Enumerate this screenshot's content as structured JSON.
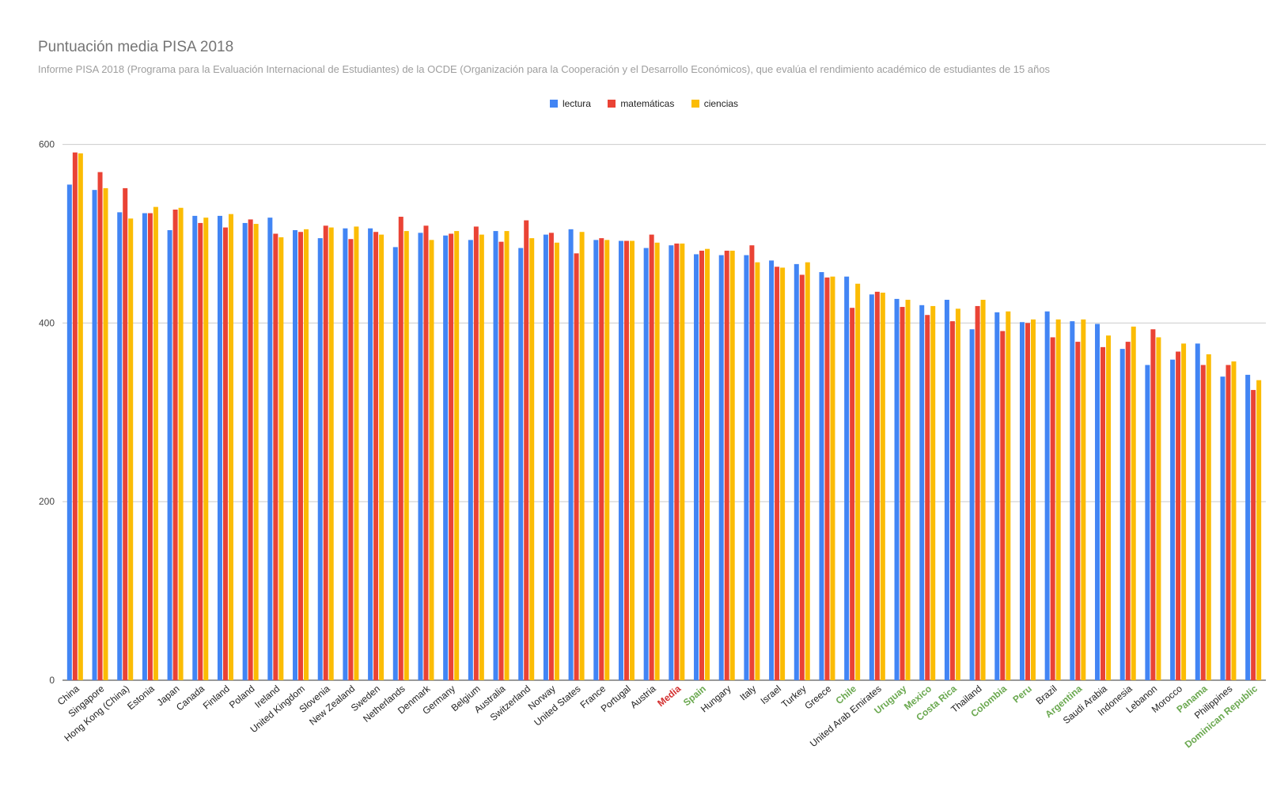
{
  "chart_data": {
    "type": "bar",
    "title": "Puntuación media PISA 2018",
    "subtitle": "Informe PISA 2018 (Programa para la Evaluación Internacional de Estudiantes) de la OCDE (Organización para la Cooperación y el Desarrollo Económicos), que evalúa el rendimiento académico de estudiantes de 15 años",
    "ylim": [
      0,
      620
    ],
    "yticks": [
      0,
      200,
      400,
      600
    ],
    "grid": true,
    "legend_position": "top",
    "categories": [
      "China",
      "Singapore",
      "Hong Kong (China)",
      "Estonia",
      "Japan",
      "Canada",
      "Finland",
      "Poland",
      "Ireland",
      "United Kingdom",
      "Slovenia",
      "New Zealand",
      "Sweden",
      "Netherlands",
      "Denmark",
      "Germany",
      "Belgium",
      "Australia",
      "Switzerland",
      "Norway",
      "United States",
      "France",
      "Portugal",
      "Austria",
      "Media",
      "Spain",
      "Hungary",
      "Italy",
      "Israel",
      "Turkey",
      "Greece",
      "Chile",
      "United Arab Emirates",
      "Uruguay",
      "Mexico",
      "Costa Rica",
      "Thailand",
      "Colombia",
      "Peru",
      "Brazil",
      "Argentina",
      "Saudi Arabia",
      "Indonesia",
      "Lebanon",
      "Morocco",
      "Panama",
      "Philippines",
      "Dominican Republic"
    ],
    "highlight_categories": {
      "Media": "#d32f2f",
      "Spain": "#6aa84f",
      "Chile": "#6aa84f",
      "Uruguay": "#6aa84f",
      "Mexico": "#6aa84f",
      "Costa Rica": "#6aa84f",
      "Colombia": "#6aa84f",
      "Peru": "#6aa84f",
      "Argentina": "#6aa84f",
      "Panama": "#6aa84f",
      "Dominican Republic": "#6aa84f"
    },
    "series": [
      {
        "name": "lectura",
        "color": "#4285f4",
        "values": [
          555,
          549,
          524,
          523,
          504,
          520,
          520,
          512,
          518,
          504,
          495,
          506,
          506,
          485,
          501,
          498,
          493,
          503,
          484,
          499,
          505,
          493,
          492,
          484,
          487,
          477,
          476,
          476,
          470,
          466,
          457,
          452,
          432,
          427,
          420,
          426,
          393,
          412,
          401,
          413,
          402,
          399,
          371,
          353,
          359,
          377,
          340,
          342
        ]
      },
      {
        "name": "matemáticas",
        "color": "#ea4335",
        "values": [
          591,
          569,
          551,
          523,
          527,
          512,
          507,
          516,
          500,
          502,
          509,
          494,
          502,
          519,
          509,
          500,
          508,
          491,
          515,
          501,
          478,
          495,
          492,
          499,
          489,
          481,
          481,
          487,
          463,
          454,
          451,
          417,
          435,
          418,
          409,
          402,
          419,
          391,
          400,
          384,
          379,
          373,
          379,
          393,
          368,
          353,
          353,
          325
        ]
      },
      {
        "name": "ciencias",
        "color": "#fbbc04",
        "values": [
          590,
          551,
          517,
          530,
          529,
          518,
          522,
          511,
          496,
          505,
          507,
          508,
          499,
          503,
          493,
          503,
          499,
          503,
          495,
          490,
          502,
          493,
          492,
          490,
          489,
          483,
          481,
          468,
          462,
          468,
          452,
          444,
          434,
          426,
          419,
          416,
          426,
          413,
          404,
          404,
          404,
          386,
          396,
          384,
          377,
          365,
          357,
          336
        ]
      }
    ]
  }
}
